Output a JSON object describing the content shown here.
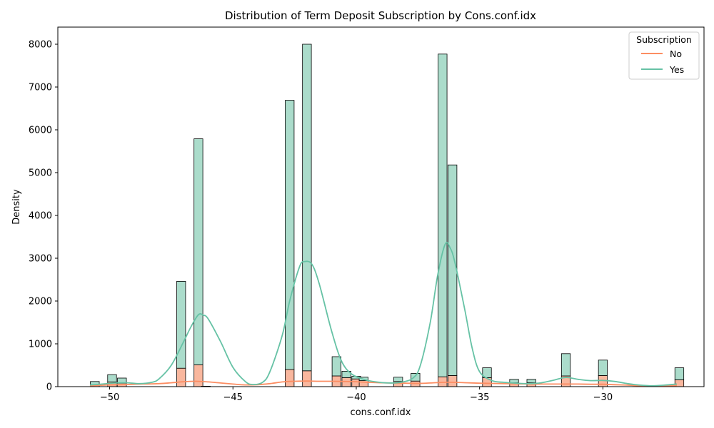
{
  "chart_data": {
    "type": "bar",
    "subtype": "stacked-histogram-with-kde",
    "title": "Distribution of Term Deposit Subscription by Cons.conf.idx",
    "xlabel": "cons.conf.idx",
    "ylabel": "Density",
    "xlim": [
      -52.1,
      -25.9
    ],
    "ylim": [
      0,
      8400
    ],
    "xticks": [
      -50,
      -45,
      -40,
      -35,
      -30
    ],
    "xtick_labels": [
      "−50",
      "−45",
      "−40",
      "−35",
      "−30"
    ],
    "yticks": [
      0,
      1000,
      2000,
      3000,
      4000,
      5000,
      6000,
      7000,
      8000
    ],
    "bin_width": 0.36,
    "grid": false,
    "legend": {
      "title": "Subscription",
      "placement": "top-right",
      "entries": [
        "No",
        "Yes"
      ]
    },
    "colors": {
      "no_bar": "#f9b79e",
      "yes_bar": "#abdccb",
      "no_line": "#fc8d62",
      "yes_line": "#66c2a5",
      "edge": "#000000"
    },
    "bins": [
      {
        "x": -50.6,
        "no": 50,
        "total": 120
      },
      {
        "x": -49.9,
        "no": 110,
        "total": 280
      },
      {
        "x": -49.5,
        "no": 80,
        "total": 200
      },
      {
        "x": -47.1,
        "no": 430,
        "total": 2460
      },
      {
        "x": -46.4,
        "no": 510,
        "total": 5790
      },
      {
        "x": -46.1,
        "no": 10,
        "total": 10
      },
      {
        "x": -42.7,
        "no": 400,
        "total": 6690
      },
      {
        "x": -42.0,
        "no": 370,
        "total": 8000
      },
      {
        "x": -40.8,
        "no": 250,
        "total": 700
      },
      {
        "x": -40.4,
        "no": 210,
        "total": 360
      },
      {
        "x": -40.0,
        "no": 180,
        "total": 240
      },
      {
        "x": -39.7,
        "no": 140,
        "total": 220
      },
      {
        "x": -38.3,
        "no": 120,
        "total": 220
      },
      {
        "x": -37.6,
        "no": 130,
        "total": 310
      },
      {
        "x": -36.5,
        "no": 230,
        "total": 7770
      },
      {
        "x": -36.1,
        "no": 260,
        "total": 5180
      },
      {
        "x": -34.7,
        "no": 210,
        "total": 440
      },
      {
        "x": -33.6,
        "no": 90,
        "total": 170
      },
      {
        "x": -32.9,
        "no": 90,
        "total": 170
      },
      {
        "x": -31.5,
        "no": 250,
        "total": 770
      },
      {
        "x": -30.0,
        "no": 260,
        "total": 620
      },
      {
        "x": -26.9,
        "no": 160,
        "total": 440
      }
    ],
    "series": [
      {
        "name": "No",
        "kde": [
          [
            -50.8,
            20
          ],
          [
            -50,
            40
          ],
          [
            -49,
            55
          ],
          [
            -48,
            70
          ],
          [
            -47.5,
            90
          ],
          [
            -47,
            115
          ],
          [
            -46.5,
            125
          ],
          [
            -46,
            110
          ],
          [
            -45.5,
            85
          ],
          [
            -45,
            60
          ],
          [
            -44.5,
            40
          ],
          [
            -44,
            45
          ],
          [
            -43.5,
            70
          ],
          [
            -43,
            110
          ],
          [
            -42.5,
            125
          ],
          [
            -42,
            130
          ],
          [
            -41.5,
            125
          ],
          [
            -41,
            125
          ],
          [
            -40.5,
            120
          ],
          [
            -40,
            115
          ],
          [
            -39.5,
            100
          ],
          [
            -39,
            90
          ],
          [
            -38.5,
            85
          ],
          [
            -38,
            80
          ],
          [
            -37.5,
            75
          ],
          [
            -37,
            85
          ],
          [
            -36.5,
            100
          ],
          [
            -36,
            100
          ],
          [
            -35.5,
            90
          ],
          [
            -35,
            80
          ],
          [
            -34.5,
            75
          ],
          [
            -34,
            70
          ],
          [
            -33.5,
            65
          ],
          [
            -33,
            60
          ],
          [
            -32.5,
            60
          ],
          [
            -32,
            60
          ],
          [
            -31.5,
            60
          ],
          [
            -31,
            60
          ],
          [
            -30.5,
            55
          ],
          [
            -30,
            55
          ],
          [
            -29.5,
            45
          ],
          [
            -29,
            35
          ],
          [
            -28.5,
            20
          ],
          [
            -28,
            15
          ],
          [
            -27.5,
            20
          ],
          [
            -27,
            25
          ]
        ]
      },
      {
        "name": "Yes",
        "kde": [
          [
            -50.8,
            40
          ],
          [
            -50.3,
            60
          ],
          [
            -49.8,
            85
          ],
          [
            -49.3,
            90
          ],
          [
            -48.8,
            70
          ],
          [
            -48.3,
            100
          ],
          [
            -48,
            180
          ],
          [
            -47.5,
            500
          ],
          [
            -47,
            1050
          ],
          [
            -46.7,
            1400
          ],
          [
            -46.4,
            1680
          ],
          [
            -46.2,
            1670
          ],
          [
            -46,
            1580
          ],
          [
            -45.5,
            1050
          ],
          [
            -45,
            450
          ],
          [
            -44.5,
            120
          ],
          [
            -44.2,
            50
          ],
          [
            -43.8,
            100
          ],
          [
            -43.5,
            350
          ],
          [
            -43,
            1200
          ],
          [
            -42.7,
            2000
          ],
          [
            -42.3,
            2800
          ],
          [
            -42.1,
            2920
          ],
          [
            -41.8,
            2860
          ],
          [
            -41.5,
            2400
          ],
          [
            -41,
            1300
          ],
          [
            -40.6,
            600
          ],
          [
            -40.2,
            300
          ],
          [
            -39.7,
            170
          ],
          [
            -39.2,
            110
          ],
          [
            -38.7,
            85
          ],
          [
            -38.2,
            100
          ],
          [
            -37.7,
            200
          ],
          [
            -37.4,
            500
          ],
          [
            -37,
            1500
          ],
          [
            -36.7,
            2600
          ],
          [
            -36.4,
            3320
          ],
          [
            -36.2,
            3250
          ],
          [
            -36,
            2900
          ],
          [
            -35.6,
            1800
          ],
          [
            -35.3,
            900
          ],
          [
            -35,
            350
          ],
          [
            -34.5,
            140
          ],
          [
            -34,
            100
          ],
          [
            -33.5,
            80
          ],
          [
            -33,
            70
          ],
          [
            -32.5,
            90
          ],
          [
            -32,
            150
          ],
          [
            -31.5,
            215
          ],
          [
            -31,
            170
          ],
          [
            -30.5,
            140
          ],
          [
            -30,
            145
          ],
          [
            -29.5,
            120
          ],
          [
            -29,
            70
          ],
          [
            -28.5,
            35
          ],
          [
            -28,
            20
          ],
          [
            -27.5,
            35
          ],
          [
            -27,
            60
          ]
        ]
      }
    ]
  }
}
